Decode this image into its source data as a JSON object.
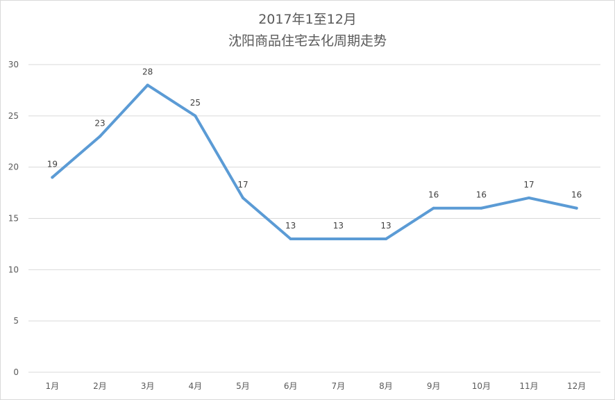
{
  "chart_data": {
    "type": "line",
    "title": [
      "2017年1至12月",
      "沈阳商品住宅去化周期走势"
    ],
    "categories": [
      "1月",
      "2月",
      "3月",
      "4月",
      "5月",
      "6月",
      "7月",
      "8月",
      "9月",
      "10月",
      "11月",
      "12月"
    ],
    "series": [
      {
        "values": [
          19,
          23,
          28,
          25,
          17,
          13,
          13,
          13,
          16,
          16,
          17,
          16
        ],
        "color": "#5b9bd5"
      }
    ],
    "ylim": [
      0,
      30
    ],
    "yticks": [
      0,
      5,
      10,
      15,
      20,
      25,
      30
    ],
    "grid": true,
    "legend": "none",
    "data_labels": true
  }
}
